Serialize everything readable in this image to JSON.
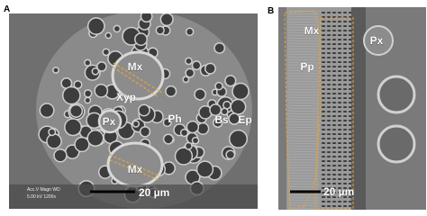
{
  "panels": [
    {
      "label": "A",
      "annotations": [
        "Mx",
        "Xyp",
        "Px",
        "Ph",
        "Bs",
        "Ep",
        "Mx"
      ],
      "scale_bar": "20 µm",
      "instrument": [
        "Acc.V  Magn   WD",
        "5.00 kV 1200x"
      ]
    },
    {
      "label": "B",
      "annotations": [
        "Mx",
        "Px",
        "Pp"
      ],
      "scale_bar": "20 µm"
    }
  ]
}
